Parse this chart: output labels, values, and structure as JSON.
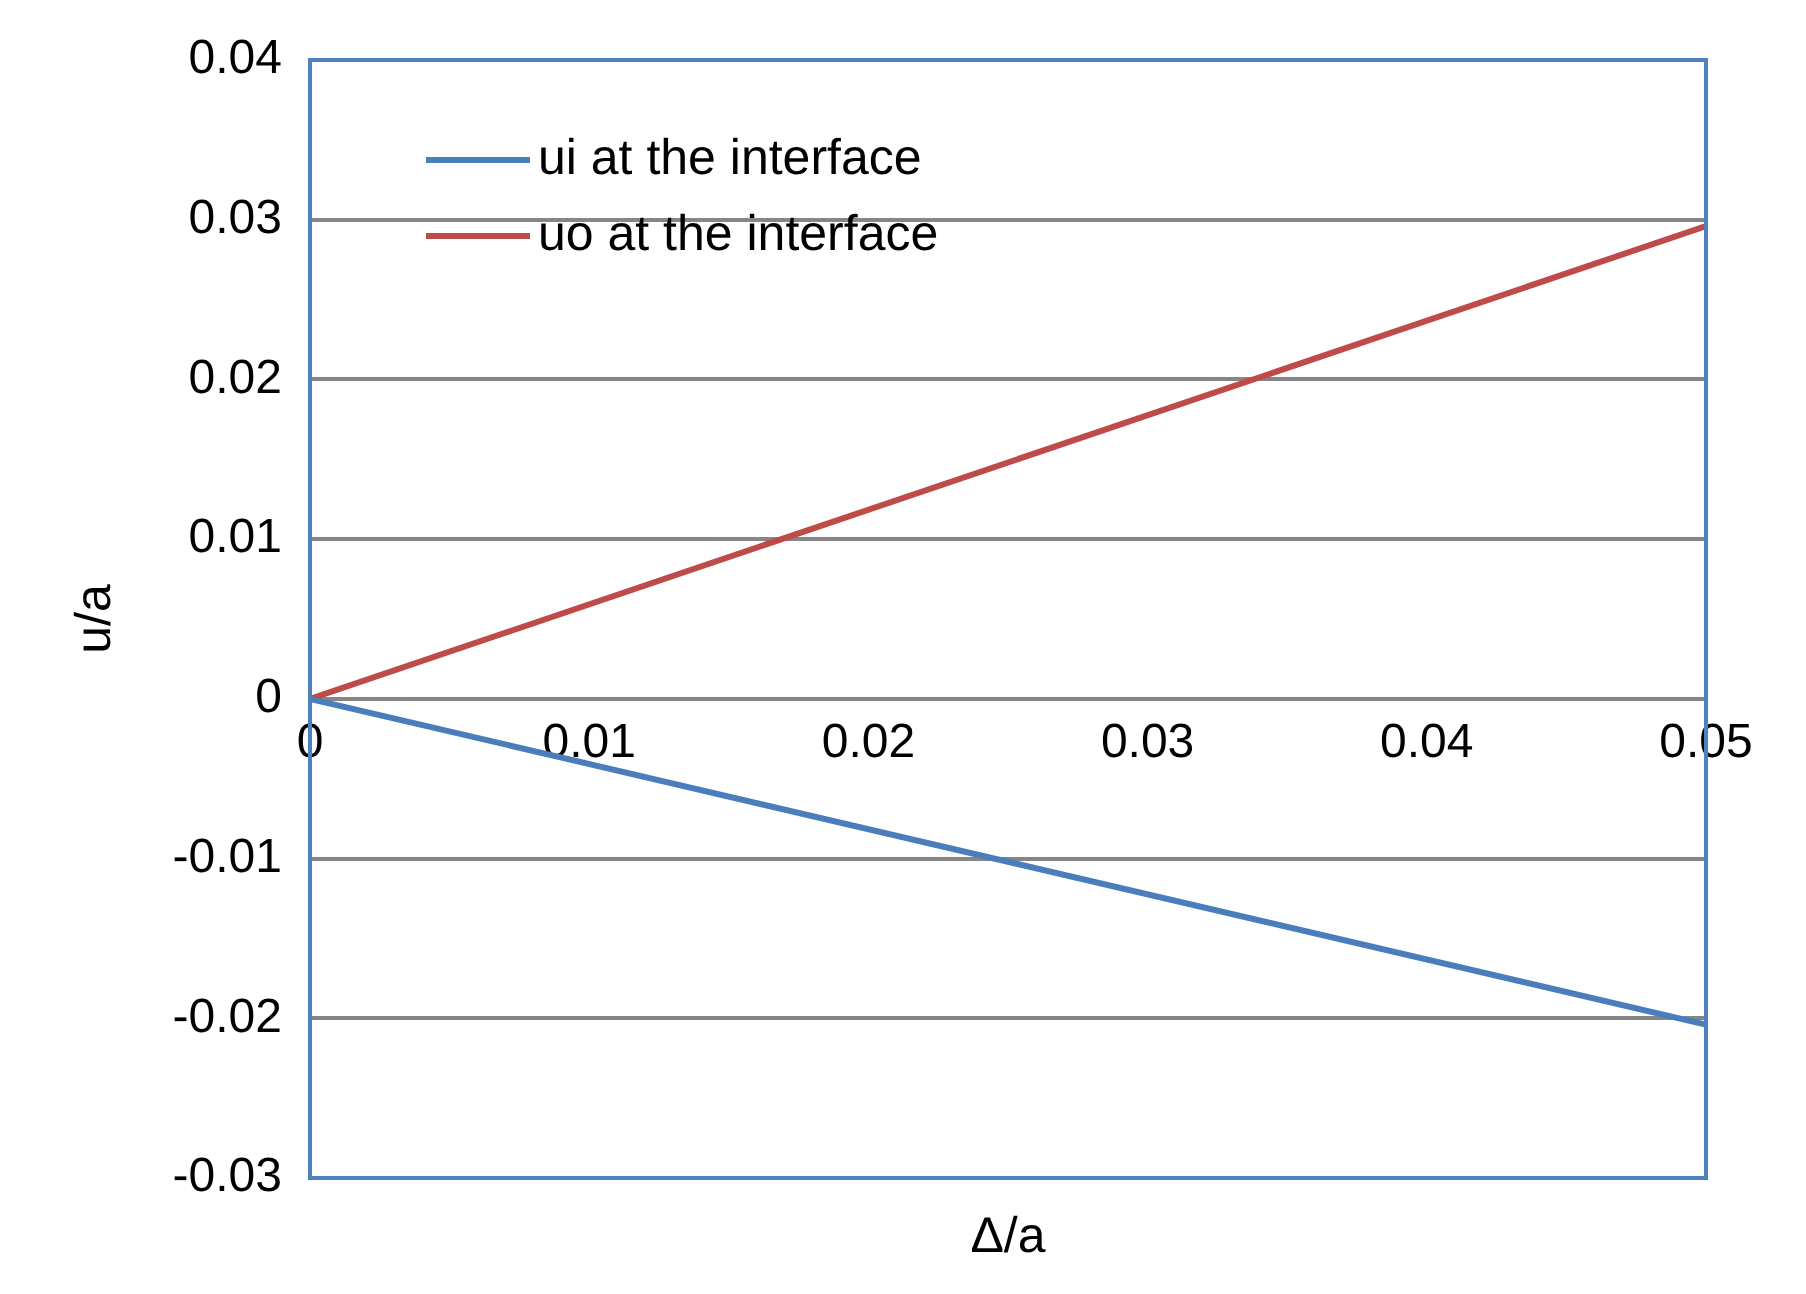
{
  "chart_data": {
    "type": "line",
    "xlabel": "Δ/a",
    "ylabel": "u/a",
    "x": [
      0,
      0.05
    ],
    "series": [
      {
        "name": "ui at the interface",
        "color": "#4a7ebb",
        "values": [
          0,
          -0.0204
        ]
      },
      {
        "name": "uo at the interface",
        "color": "#be4b48",
        "values": [
          0,
          0.0296
        ]
      }
    ],
    "xlim": [
      0,
      0.05
    ],
    "xticks": [
      0,
      0.01,
      0.02,
      0.03,
      0.04,
      0.05
    ],
    "ylim": [
      -0.03,
      0.04
    ],
    "yticks": [
      -0.03,
      -0.02,
      -0.01,
      0,
      0.01,
      0.02,
      0.03,
      0.04
    ],
    "grid": "y",
    "legend": "top left",
    "marker": "none",
    "line_style": "solid"
  }
}
